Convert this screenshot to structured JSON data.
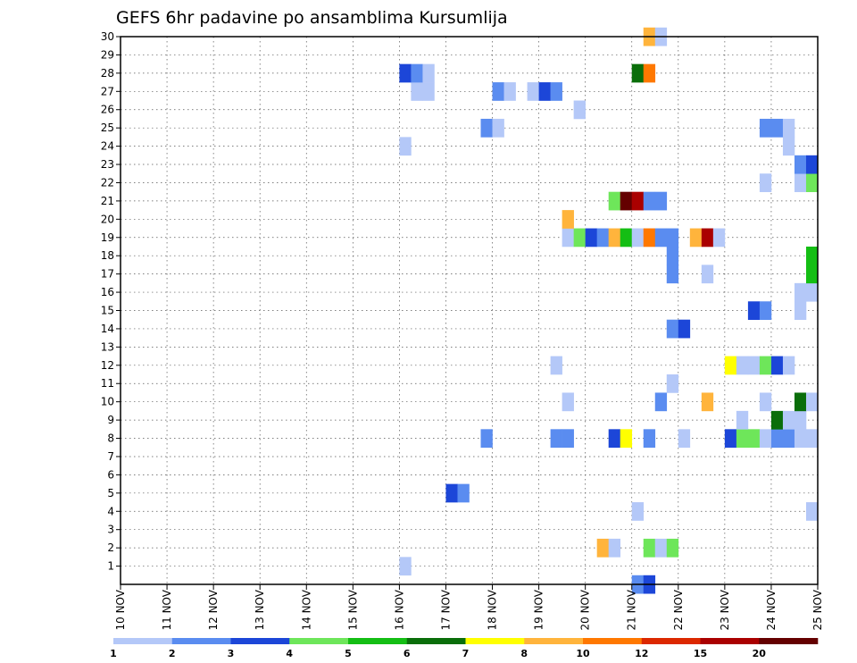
{
  "chart_data": {
    "type": "heatmap",
    "title": "GEFS 6hr padavine po ansamblima Kursumlija",
    "x_ticks": [
      "10 NOV",
      "11 NOV",
      "12 NOV",
      "13 NOV",
      "14 NOV",
      "15 NOV",
      "16 NOV",
      "17 NOV",
      "18 NOV",
      "19 NOV",
      "20 NOV",
      "21 NOV",
      "22 NOV",
      "23 NOV",
      "24 NOV",
      "25 NOV"
    ],
    "y_ticks": [
      "1",
      "2",
      "3",
      "4",
      "5",
      "6",
      "7",
      "8",
      "9",
      "10",
      "11",
      "12",
      "13",
      "14",
      "15",
      "16",
      "17",
      "18",
      "19",
      "20",
      "21",
      "22",
      "23",
      "24",
      "25",
      "26",
      "27",
      "28",
      "29",
      "30"
    ],
    "xlim_days": [
      10,
      25
    ],
    "ylim_members": [
      0,
      30
    ],
    "grid": true,
    "colorbar": {
      "colors": [
        "#b4c8f8",
        "#5a8cf0",
        "#1c46d8",
        "#6ee65a",
        "#14be14",
        "#0a6e0a",
        "#ffff00",
        "#ffb43c",
        "#ff7800",
        "#dc2800",
        "#aa0000",
        "#640000"
      ],
      "labels": [
        "1",
        "2",
        "3",
        "4",
        "5",
        "6",
        "7",
        "8",
        "10",
        "12",
        "15",
        "20"
      ]
    },
    "cells": [
      {
        "t": 16.0,
        "m": 1,
        "c": 0
      },
      {
        "t": 17.0,
        "m": 5,
        "c": 2
      },
      {
        "t": 17.25,
        "m": 5,
        "c": 1
      },
      {
        "t": 21.0,
        "m": 0,
        "c": 1
      },
      {
        "t": 21.25,
        "m": 0,
        "c": 2
      },
      {
        "t": 20.25,
        "m": 2,
        "c": 7
      },
      {
        "t": 20.5,
        "m": 2,
        "c": 0
      },
      {
        "t": 21.25,
        "m": 2,
        "c": 3
      },
      {
        "t": 21.5,
        "m": 2,
        "c": 0
      },
      {
        "t": 21.75,
        "m": 2,
        "c": 3
      },
      {
        "t": 21.0,
        "m": 4,
        "c": 0
      },
      {
        "t": 24.75,
        "m": 4,
        "c": 0
      },
      {
        "t": 17.75,
        "m": 8,
        "c": 1
      },
      {
        "t": 19.25,
        "m": 8,
        "c": 1
      },
      {
        "t": 19.5,
        "m": 8,
        "c": 1
      },
      {
        "t": 20.5,
        "m": 8,
        "c": 2
      },
      {
        "t": 20.75,
        "m": 8,
        "c": 6
      },
      {
        "t": 21.25,
        "m": 8,
        "c": 1
      },
      {
        "t": 22.0,
        "m": 8,
        "c": 0
      },
      {
        "t": 23.0,
        "m": 8,
        "c": 2
      },
      {
        "t": 23.25,
        "m": 8,
        "c": 3
      },
      {
        "t": 23.5,
        "m": 8,
        "c": 3
      },
      {
        "t": 23.75,
        "m": 8,
        "c": 0
      },
      {
        "t": 24.0,
        "m": 8,
        "c": 1
      },
      {
        "t": 24.25,
        "m": 8,
        "c": 1
      },
      {
        "t": 24.5,
        "m": 8,
        "c": 0
      },
      {
        "t": 24.75,
        "m": 8,
        "c": 0
      },
      {
        "t": 23.25,
        "m": 9,
        "c": 0
      },
      {
        "t": 24.0,
        "m": 9,
        "c": 5
      },
      {
        "t": 24.25,
        "m": 9,
        "c": 0
      },
      {
        "t": 24.5,
        "m": 9,
        "c": 0
      },
      {
        "t": 19.5,
        "m": 10,
        "c": 0
      },
      {
        "t": 21.5,
        "m": 10,
        "c": 1
      },
      {
        "t": 22.5,
        "m": 10,
        "c": 7
      },
      {
        "t": 23.75,
        "m": 10,
        "c": 0
      },
      {
        "t": 24.5,
        "m": 10,
        "c": 5
      },
      {
        "t": 24.75,
        "m": 10,
        "c": 0
      },
      {
        "t": 21.75,
        "m": 11,
        "c": 0
      },
      {
        "t": 19.25,
        "m": 12,
        "c": 0
      },
      {
        "t": 23.0,
        "m": 12,
        "c": 6
      },
      {
        "t": 23.25,
        "m": 12,
        "c": 0
      },
      {
        "t": 23.5,
        "m": 12,
        "c": 0
      },
      {
        "t": 23.75,
        "m": 12,
        "c": 3
      },
      {
        "t": 24.0,
        "m": 12,
        "c": 2
      },
      {
        "t": 24.25,
        "m": 12,
        "c": 0
      },
      {
        "t": 21.75,
        "m": 14,
        "c": 1
      },
      {
        "t": 22.0,
        "m": 14,
        "c": 2
      },
      {
        "t": 23.5,
        "m": 15,
        "c": 2
      },
      {
        "t": 23.75,
        "m": 15,
        "c": 1
      },
      {
        "t": 24.5,
        "m": 15,
        "c": 0
      },
      {
        "t": 24.5,
        "m": 16,
        "c": 0
      },
      {
        "t": 24.75,
        "m": 16,
        "c": 0
      },
      {
        "t": 21.75,
        "m": 17,
        "c": 1
      },
      {
        "t": 22.5,
        "m": 17,
        "c": 0
      },
      {
        "t": 24.75,
        "m": 17,
        "c": 4
      },
      {
        "t": 21.75,
        "m": 18,
        "c": 1
      },
      {
        "t": 24.75,
        "m": 18,
        "c": 4
      },
      {
        "t": 19.5,
        "m": 19,
        "c": 0
      },
      {
        "t": 19.75,
        "m": 19,
        "c": 3
      },
      {
        "t": 20.0,
        "m": 19,
        "c": 2
      },
      {
        "t": 20.25,
        "m": 19,
        "c": 1
      },
      {
        "t": 20.5,
        "m": 19,
        "c": 7
      },
      {
        "t": 20.75,
        "m": 19,
        "c": 4
      },
      {
        "t": 21.0,
        "m": 19,
        "c": 0
      },
      {
        "t": 21.25,
        "m": 19,
        "c": 8
      },
      {
        "t": 21.5,
        "m": 19,
        "c": 1
      },
      {
        "t": 21.75,
        "m": 19,
        "c": 1
      },
      {
        "t": 22.25,
        "m": 19,
        "c": 7
      },
      {
        "t": 22.5,
        "m": 19,
        "c": 10
      },
      {
        "t": 22.75,
        "m": 19,
        "c": 0
      },
      {
        "t": 19.5,
        "m": 20,
        "c": 7
      },
      {
        "t": 20.5,
        "m": 21,
        "c": 3
      },
      {
        "t": 20.75,
        "m": 21,
        "c": 11
      },
      {
        "t": 21.0,
        "m": 21,
        "c": 10
      },
      {
        "t": 21.25,
        "m": 21,
        "c": 1
      },
      {
        "t": 21.5,
        "m": 21,
        "c": 1
      },
      {
        "t": 23.75,
        "m": 22,
        "c": 0
      },
      {
        "t": 24.5,
        "m": 22,
        "c": 0
      },
      {
        "t": 24.75,
        "m": 22,
        "c": 3
      },
      {
        "t": 24.5,
        "m": 23,
        "c": 1
      },
      {
        "t": 24.75,
        "m": 23,
        "c": 2
      },
      {
        "t": 16.0,
        "m": 24,
        "c": 0
      },
      {
        "t": 24.25,
        "m": 24,
        "c": 0
      },
      {
        "t": 17.75,
        "m": 25,
        "c": 1
      },
      {
        "t": 18.0,
        "m": 25,
        "c": 0
      },
      {
        "t": 23.75,
        "m": 25,
        "c": 1
      },
      {
        "t": 24.0,
        "m": 25,
        "c": 1
      },
      {
        "t": 24.25,
        "m": 25,
        "c": 0
      },
      {
        "t": 19.75,
        "m": 26,
        "c": 0
      },
      {
        "t": 16.25,
        "m": 27,
        "c": 0
      },
      {
        "t": 16.5,
        "m": 27,
        "c": 0
      },
      {
        "t": 18.0,
        "m": 27,
        "c": 1
      },
      {
        "t": 18.25,
        "m": 27,
        "c": 0
      },
      {
        "t": 18.75,
        "m": 27,
        "c": 0
      },
      {
        "t": 19.0,
        "m": 27,
        "c": 2
      },
      {
        "t": 19.25,
        "m": 27,
        "c": 1
      },
      {
        "t": 16.0,
        "m": 28,
        "c": 2
      },
      {
        "t": 16.25,
        "m": 28,
        "c": 1
      },
      {
        "t": 16.5,
        "m": 28,
        "c": 0
      },
      {
        "t": 21.0,
        "m": 28,
        "c": 5
      },
      {
        "t": 21.25,
        "m": 28,
        "c": 8
      },
      {
        "t": 21.25,
        "m": 30,
        "c": 7
      },
      {
        "t": 21.5,
        "m": 30,
        "c": 0
      }
    ]
  }
}
